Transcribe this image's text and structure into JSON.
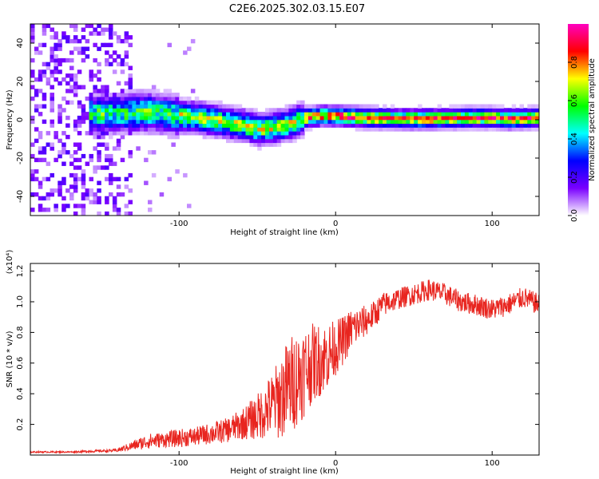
{
  "title": "C2E6.2025.302.03.15.E07",
  "chart_data": [
    {
      "type": "heatmap",
      "title": "C2E6.2025.302.03.15.E07",
      "xlabel": "Height of straight line (km)",
      "ylabel": "Frequency (Hz)",
      "xlim": [
        -195,
        130
      ],
      "ylim": [
        -50,
        50
      ],
      "xticks": [
        -100,
        0,
        100
      ],
      "xtick_labels": [
        "-100",
        "0",
        "100"
      ],
      "yticks": [
        -40,
        -20,
        0,
        20,
        40
      ],
      "ytick_labels": [
        "-40",
        "-20",
        "0",
        "20",
        "40"
      ],
      "colorbar": {
        "label": "Normalized spectral amplitude",
        "range": [
          0.0,
          1.0
        ],
        "ticks": [
          0.0,
          0.2,
          0.4,
          0.6,
          0.8
        ],
        "tick_labels": [
          "0.0",
          "0.2",
          "0.4",
          "0.6",
          "0.8"
        ],
        "colormap": [
          "#ffffff",
          "#7a00ff",
          "#0000ff",
          "#00ffff",
          "#00ff00",
          "#ffff00",
          "#ff0000",
          "#ff00c0"
        ]
      },
      "ridge": {
        "x": [
          -150,
          -120,
          -100,
          -80,
          -60,
          -50,
          -40,
          -30,
          -20,
          -10,
          0,
          20,
          40,
          60,
          80,
          100,
          110,
          130
        ],
        "frequency": [
          3,
          4,
          2,
          0,
          -3,
          -5,
          -4,
          -2,
          1,
          2,
          2,
          1,
          0.5,
          0.5,
          1,
          1,
          0.5,
          1
        ]
      },
      "noise_region_x": [
        -195,
        -130
      ]
    },
    {
      "type": "line",
      "xlabel": "Height of straight line (km)",
      "ylabel": "SNR (10 * v/v)",
      "y_multiplier": "(x10⁴)",
      "xlim": [
        -195,
        130
      ],
      "ylim": [
        0,
        1.25
      ],
      "xticks": [
        -100,
        0,
        100
      ],
      "xtick_labels": [
        "-100",
        "0",
        "100"
      ],
      "yticks": [
        0.2,
        0.4,
        0.6,
        0.8,
        1.0,
        1.2
      ],
      "ytick_labels": [
        "0.2",
        "0.4",
        "0.6",
        "0.8",
        "1.0",
        "1.2"
      ],
      "line_color": "#e8251f",
      "series": [
        {
          "name": "SNR",
          "x": [
            -195,
            -170,
            -140,
            -130,
            -120,
            -110,
            -100,
            -90,
            -80,
            -70,
            -60,
            -50,
            -40,
            -35,
            -30,
            -25,
            -20,
            -15,
            -10,
            -5,
            0,
            5,
            10,
            15,
            20,
            25,
            30,
            40,
            50,
            60,
            70,
            80,
            90,
            100,
            110,
            120,
            130
          ],
          "values": [
            0.02,
            0.02,
            0.03,
            0.06,
            0.09,
            0.1,
            0.11,
            0.12,
            0.14,
            0.16,
            0.2,
            0.25,
            0.33,
            0.38,
            0.45,
            0.5,
            0.55,
            0.6,
            0.62,
            0.65,
            0.7,
            0.75,
            0.82,
            0.85,
            0.88,
            0.92,
            0.98,
            1.02,
            1.05,
            1.08,
            1.05,
            1.0,
            0.98,
            0.95,
            0.98,
            1.03,
            0.98
          ],
          "noise_amplitude": [
            0.005,
            0.005,
            0.01,
            0.03,
            0.05,
            0.05,
            0.06,
            0.06,
            0.07,
            0.08,
            0.1,
            0.15,
            0.22,
            0.28,
            0.32,
            0.32,
            0.3,
            0.26,
            0.24,
            0.22,
            0.18,
            0.16,
            0.14,
            0.12,
            0.1,
            0.09,
            0.08,
            0.07,
            0.07,
            0.07,
            0.07,
            0.07,
            0.07,
            0.07,
            0.07,
            0.07,
            0.07
          ]
        }
      ]
    }
  ]
}
